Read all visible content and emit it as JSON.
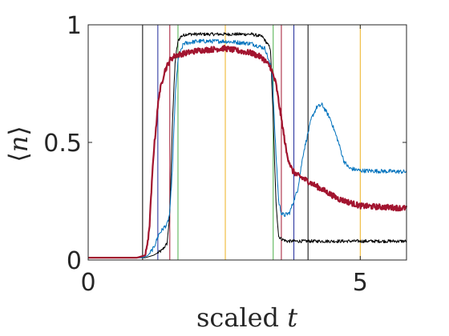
{
  "chart_data": {
    "type": "line",
    "xlabel": "scaled",
    "xlabel_var": "t",
    "ylabel_lang": "⟨",
    "ylabel_var": "n",
    "ylabel_rang": "⟩",
    "xlim": [
      0,
      5.85
    ],
    "ylim": [
      0,
      1
    ],
    "xticks": [
      0,
      5
    ],
    "xtick_labels": [
      "0",
      "5"
    ],
    "yticks": [
      0,
      0.5,
      1
    ],
    "ytick_labels": [
      "0",
      "0.5",
      "1"
    ],
    "grid": false,
    "colors": {
      "black": "#000000",
      "blue": "#0072bd",
      "red": "#a2142f",
      "green": "#4daf4a",
      "orange": "#edb120",
      "navy": "#1f2a9a"
    },
    "vertical_lines": [
      {
        "x": 1.0,
        "color": "#000000"
      },
      {
        "x": 1.28,
        "color": "#1f2a9a"
      },
      {
        "x": 1.5,
        "color": "#a2142f"
      },
      {
        "x": 1.65,
        "color": "#4daf4a"
      },
      {
        "x": 2.52,
        "color": "#edb120"
      },
      {
        "x": 3.4,
        "color": "#4daf4a"
      },
      {
        "x": 3.55,
        "color": "#a2142f"
      },
      {
        "x": 3.78,
        "color": "#1f2a9a"
      },
      {
        "x": 4.04,
        "color": "#000000"
      },
      {
        "x": 5.0,
        "color": "#edb120"
      }
    ],
    "series": [
      {
        "color": "#000000",
        "width": 1.0,
        "noise": 0.007,
        "x": [
          0,
          0.9,
          1.05,
          1.2,
          1.35,
          1.45,
          1.5,
          1.55,
          1.6,
          1.65,
          1.7,
          1.8,
          2.0,
          2.5,
          3.0,
          3.2,
          3.35,
          3.4,
          3.45,
          3.5,
          3.55,
          3.65,
          3.8,
          4.0,
          5.85
        ],
        "y": [
          0.01,
          0.01,
          0.01,
          0.02,
          0.04,
          0.07,
          0.2,
          0.6,
          0.85,
          0.93,
          0.95,
          0.96,
          0.96,
          0.96,
          0.96,
          0.95,
          0.9,
          0.6,
          0.25,
          0.1,
          0.09,
          0.08,
          0.08,
          0.08,
          0.08
        ]
      },
      {
        "color": "#0072bd",
        "width": 1.0,
        "noise": 0.009,
        "x": [
          0,
          1.0,
          1.1,
          1.2,
          1.3,
          1.4,
          1.45,
          1.5,
          1.55,
          1.6,
          1.65,
          1.75,
          2.0,
          2.5,
          3.0,
          3.25,
          3.38,
          3.44,
          3.5,
          3.55,
          3.6,
          3.7,
          3.85,
          3.95,
          4.1,
          4.2,
          4.3,
          4.45,
          4.6,
          4.7,
          4.8,
          5.0,
          5.85
        ],
        "y": [
          0.01,
          0.01,
          0.02,
          0.05,
          0.11,
          0.14,
          0.15,
          0.2,
          0.4,
          0.7,
          0.85,
          0.92,
          0.93,
          0.93,
          0.92,
          0.9,
          0.8,
          0.5,
          0.25,
          0.2,
          0.19,
          0.2,
          0.3,
          0.45,
          0.6,
          0.65,
          0.66,
          0.6,
          0.5,
          0.42,
          0.39,
          0.38,
          0.375
        ]
      },
      {
        "color": "#a2142f",
        "width": 2.2,
        "noise": 0.012,
        "x": [
          0,
          0.9,
          1.05,
          1.12,
          1.2,
          1.3,
          1.4,
          1.5,
          1.6,
          1.8,
          2.0,
          2.5,
          3.0,
          3.2,
          3.35,
          3.45,
          3.55,
          3.65,
          3.75,
          3.85,
          4.0,
          4.3,
          4.6,
          5.0,
          5.85
        ],
        "y": [
          0.01,
          0.01,
          0.02,
          0.12,
          0.45,
          0.7,
          0.8,
          0.85,
          0.87,
          0.88,
          0.89,
          0.9,
          0.88,
          0.86,
          0.82,
          0.75,
          0.6,
          0.45,
          0.38,
          0.36,
          0.34,
          0.3,
          0.26,
          0.23,
          0.22
        ]
      }
    ]
  }
}
